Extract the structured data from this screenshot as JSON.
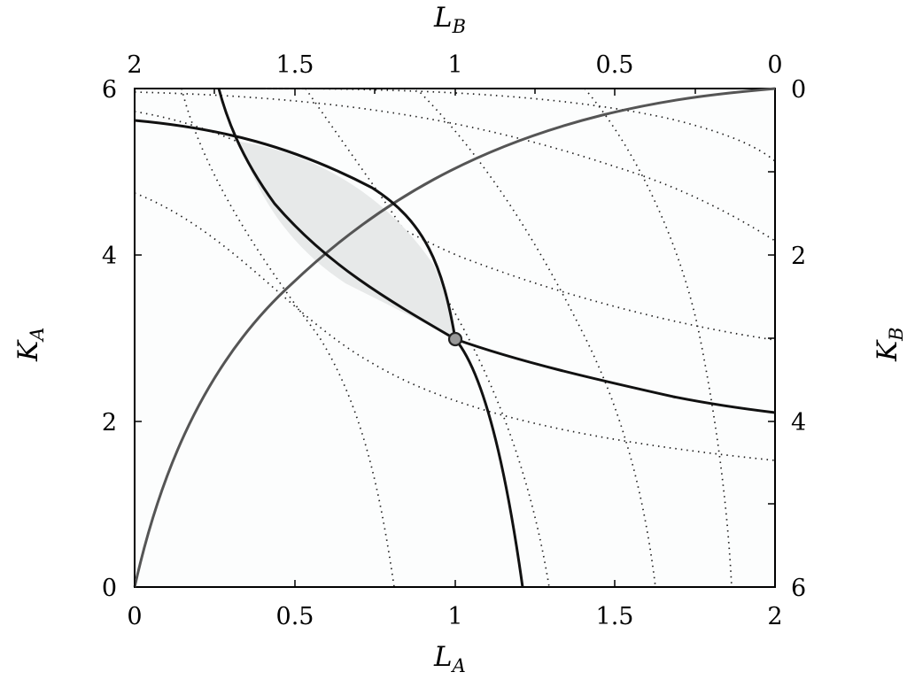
{
  "chart_data": {
    "type": "edgeworth-box",
    "axes": {
      "bottom": {
        "label": "L",
        "subscript": "A",
        "ticks": [
          "0",
          "0.5",
          "1",
          "1.5",
          "2"
        ],
        "range": [
          0,
          2
        ]
      },
      "top": {
        "label": "L",
        "subscript": "B",
        "ticks": [
          "2",
          "1.5",
          "1",
          "0.5",
          "0"
        ],
        "range": [
          2,
          0
        ]
      },
      "left": {
        "label": "K",
        "subscript": "A",
        "ticks": [
          "0",
          "2",
          "4",
          "6"
        ],
        "range": [
          0,
          6
        ]
      },
      "right": {
        "label": "K",
        "subscript": "B",
        "ticks": [
          "6",
          "4",
          "2",
          "0"
        ],
        "range": [
          6,
          0
        ]
      }
    },
    "indifference_A_solid": [
      [
        0,
        5.62
      ],
      [
        0.25,
        5.32
      ],
      [
        0.5,
        4.6
      ],
      [
        0.75,
        3.71
      ],
      [
        1,
        3.0
      ],
      [
        1.25,
        2.6
      ],
      [
        1.5,
        2.38
      ],
      [
        1.75,
        2.22
      ],
      [
        2,
        2.1
      ]
    ],
    "indifference_B_solid": [
      [
        0.26,
        6.0
      ],
      [
        0.33,
        5.38
      ],
      [
        0.5,
        4.45
      ],
      [
        0.72,
        4.59
      ],
      [
        0.85,
        3.7
      ],
      [
        1,
        3.0
      ],
      [
        1.1,
        1.96
      ],
      [
        1.21,
        0
      ]
    ],
    "contract_curve": [
      [
        0,
        0
      ],
      [
        0.1,
        2.0
      ],
      [
        0.25,
        3.2
      ],
      [
        0.5,
        4.05
      ],
      [
        0.75,
        4.75
      ],
      [
        1,
        5.25
      ],
      [
        1.25,
        5.58
      ],
      [
        1.5,
        5.8
      ],
      [
        1.75,
        5.93
      ],
      [
        2,
        6.0
      ]
    ],
    "endowment_point": [
      1.0,
      3.0
    ],
    "lens_region": "between indifference_A_solid and indifference_B_solid above the endowment point",
    "colors": {
      "box": "#000000",
      "solid_curve": "#111111",
      "contract_curve": "#555555",
      "lens_fill": "#e6e8e8",
      "point_fill": "#999999",
      "dotted": "#222222"
    }
  }
}
